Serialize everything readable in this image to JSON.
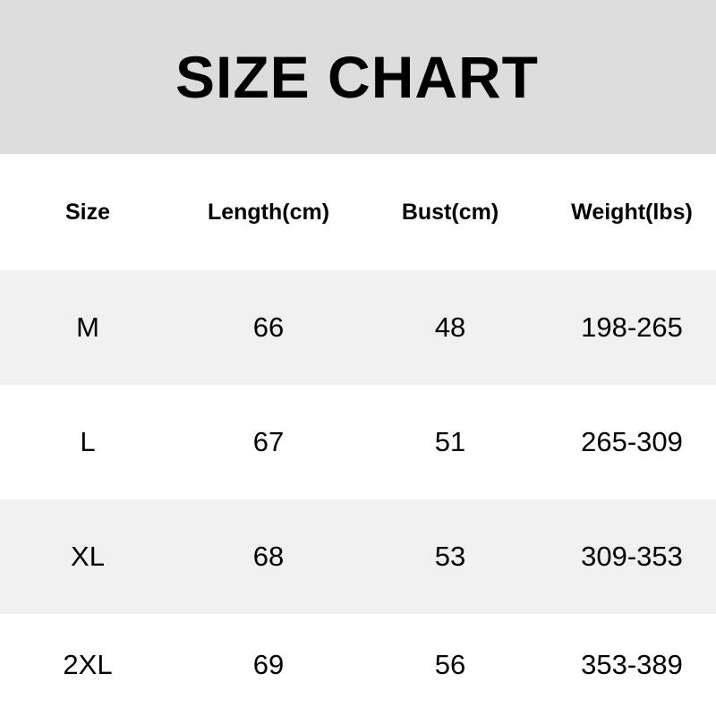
{
  "title": "SIZE CHART",
  "columns": [
    "Size",
    "Length(cm)",
    "Bust(cm)",
    "Weight(lbs)"
  ],
  "rows": [
    [
      "M",
      "66",
      "48",
      "198-265"
    ],
    [
      "L",
      "67",
      "51",
      "265-309"
    ],
    [
      "XL",
      "68",
      "53",
      "309-353"
    ],
    [
      "2XL",
      "69",
      "56",
      "353-389"
    ]
  ],
  "colors": {
    "title_band": "#dcdcdc",
    "shaded_row": "#f0f0f0",
    "text": "#000000"
  }
}
